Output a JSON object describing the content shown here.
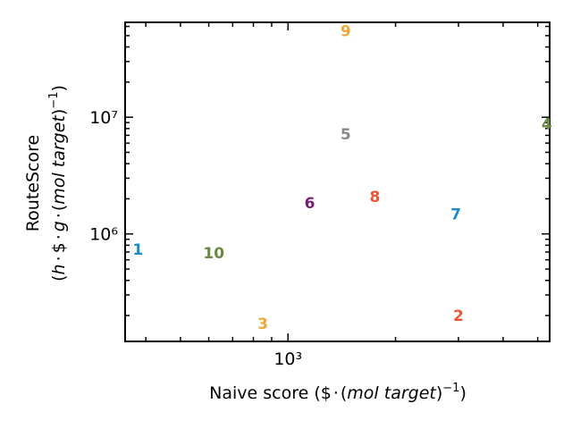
{
  "chart_data": {
    "type": "scatter",
    "xlabel": "Naive score ($·(mol target)⁻¹)",
    "ylabel": "RouteScore (h·$·g·(mol target)⁻¹)",
    "xscale": "log",
    "yscale": "log",
    "xlim": [
      350,
      5400
    ],
    "ylim": [
      120000,
      65000000
    ],
    "x_ticks": [
      {
        "value": 1000,
        "label": "10³"
      }
    ],
    "y_ticks": [
      {
        "value": 1000000,
        "label": "10⁶"
      },
      {
        "value": 10000000,
        "label": "10⁷"
      }
    ],
    "grid": false,
    "points": [
      {
        "label": "1",
        "x": 380,
        "y": 740000,
        "color": "#1a8ec6"
      },
      {
        "label": "2",
        "x": 3000,
        "y": 200000,
        "color": "#ee5533"
      },
      {
        "label": "3",
        "x": 850,
        "y": 170000,
        "color": "#eaa83a"
      },
      {
        "label": "4",
        "x": 5300,
        "y": 8800000,
        "color": "#6a8a44"
      },
      {
        "label": "5",
        "x": 1450,
        "y": 7200000,
        "color": "#888888"
      },
      {
        "label": "6",
        "x": 1150,
        "y": 1850000,
        "color": "#7a1a78"
      },
      {
        "label": "7",
        "x": 2950,
        "y": 1480000,
        "color": "#1a8ec6"
      },
      {
        "label": "8",
        "x": 1750,
        "y": 2080000,
        "color": "#ee5533"
      },
      {
        "label": "9",
        "x": 1450,
        "y": 55000000,
        "color": "#eaa83a"
      },
      {
        "label": "10",
        "x": 620,
        "y": 690000,
        "color": "#6a8a44"
      }
    ]
  }
}
